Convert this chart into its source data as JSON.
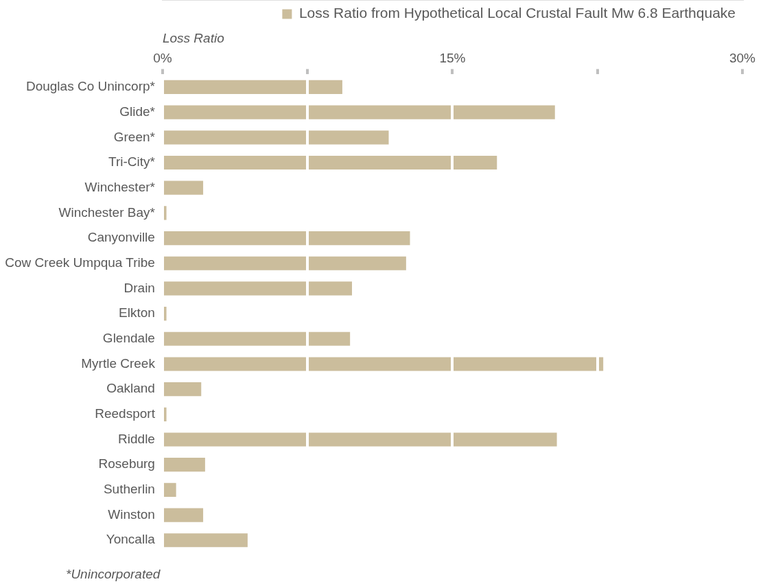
{
  "chart_data": {
    "type": "bar",
    "orientation": "horizontal",
    "xlabel": "Loss Ratio",
    "categories": [
      "Douglas Co Unincorp*",
      "Glide*",
      "Green*",
      "Tri-City*",
      "Winchester*",
      "Winchester Bay*",
      "Canyonville",
      "Cow Creek Umpqua Tribe",
      "Drain",
      "Elkton",
      "Glendale",
      "Myrtle Creek",
      "Oakland",
      "Reedsport",
      "Riddle",
      "Roseburg",
      "Sutherlin",
      "Winston",
      "Yoncalla"
    ],
    "series": [
      {
        "name": "Loss Ratio from Hypothetical Local Crustal Fault Mw 6.8 Earthquake",
        "color": "#cbbd9c",
        "values": [
          9.3,
          20.3,
          11.7,
          17.3,
          2.1,
          0.2,
          12.8,
          12.6,
          9.8,
          0.2,
          9.7,
          22.8,
          2.0,
          0.2,
          20.4,
          2.2,
          0.7,
          2.1,
          4.4
        ]
      }
    ],
    "xlim": [
      0,
      30
    ],
    "xticks": [
      {
        "value": 0,
        "label": "0%"
      },
      {
        "value": 7.5,
        "label": null
      },
      {
        "value": 15,
        "label": "15%"
      },
      {
        "value": 22.5,
        "label": null
      },
      {
        "value": 30,
        "label": "30%"
      }
    ],
    "grid": "x",
    "legend": "top right",
    "annotations": [
      "*Unincorporated"
    ]
  }
}
